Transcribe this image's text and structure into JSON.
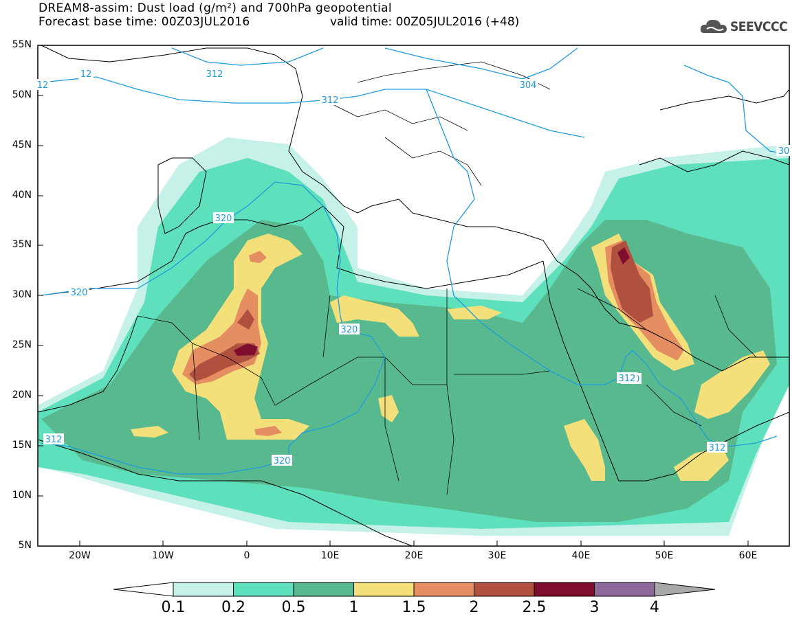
{
  "header": {
    "title_line1": "DREAM8-assim: Dust load (g/m²) and 700hPa geopotential",
    "title_line2": "Forecast base time: 00Z03JUL2016",
    "title_valid": "valid time: 00Z05JUL2016 (+48)",
    "logo_text": "SEEVCCC"
  },
  "map": {
    "lat_labels": [
      "55N",
      "50N",
      "45N",
      "40N",
      "35N",
      "30N",
      "25N",
      "20N",
      "15N",
      "10N",
      "5N"
    ],
    "lon_labels": [
      "20W",
      "10W",
      "0",
      "10E",
      "20E",
      "30E",
      "40E",
      "50E",
      "60E"
    ],
    "contour_labels": [
      "312",
      "12",
      "12",
      "312",
      "304",
      "30",
      "320",
      "320",
      "320",
      "312",
      "320",
      "320",
      "312",
      "312"
    ]
  },
  "colorbar": {
    "labels": [
      "0.1",
      "0.2",
      "0.5",
      "1",
      "1.5",
      "2",
      "2.5",
      "3",
      "4"
    ],
    "colors": [
      "#ffffff",
      "#c6f1e8",
      "#5fe0bc",
      "#58b98f",
      "#f3e07a",
      "#e48e62",
      "#b0503f",
      "#7e0d2e",
      "#8c6999",
      "#a8a8a8"
    ]
  }
}
